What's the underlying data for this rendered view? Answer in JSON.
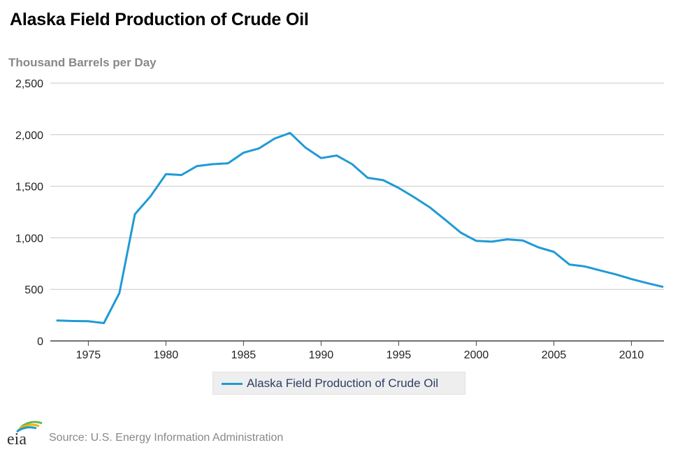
{
  "chart_data": {
    "type": "line",
    "title": "Alaska Field Production of Crude Oil",
    "ylabel": "Thousand Barrels per Day",
    "xlabel": "",
    "ylim": [
      0,
      2500
    ],
    "xlim": [
      1973,
      2012
    ],
    "yticks": [
      0,
      500,
      1000,
      1500,
      2000,
      2500
    ],
    "ytick_labels": [
      "0",
      "500",
      "1,000",
      "1,500",
      "2,000",
      "2,500"
    ],
    "xticks": [
      1975,
      1980,
      1985,
      1990,
      1995,
      2000,
      2005,
      2010
    ],
    "xtick_labels": [
      "1975",
      "1980",
      "1985",
      "1990",
      "1995",
      "2000",
      "2005",
      "2010"
    ],
    "grid": "horizontal",
    "legend_position": "bottom-center",
    "series": [
      {
        "name": "Alaska Field Production of Crude Oil",
        "color": "#1f9ad6",
        "x": [
          1973,
          1974,
          1975,
          1976,
          1977,
          1978,
          1979,
          1980,
          1981,
          1982,
          1983,
          1984,
          1985,
          1986,
          1987,
          1988,
          1989,
          1990,
          1991,
          1992,
          1993,
          1994,
          1995,
          1996,
          1997,
          1998,
          1999,
          2000,
          2001,
          2002,
          2003,
          2004,
          2005,
          2006,
          2007,
          2008,
          2009,
          2010,
          2011,
          2012
        ],
        "values": [
          198,
          193,
          191,
          173,
          464,
          1229,
          1401,
          1617,
          1609,
          1696,
          1714,
          1722,
          1825,
          1867,
          1962,
          2017,
          1874,
          1773,
          1798,
          1714,
          1582,
          1559,
          1484,
          1393,
          1296,
          1175,
          1050,
          970,
          963,
          985,
          974,
          908,
          864,
          741,
          722,
          683,
          645,
          600,
          561,
          526
        ]
      }
    ]
  },
  "legend": {
    "label": "Alaska Field Production of Crude Oil"
  },
  "footer": {
    "logo_text": "eia",
    "source": "Source: U.S. Energy Information Administration"
  },
  "colors": {
    "series": "#1f9ad6",
    "grid": "#c8c8c8",
    "axis": "#444444"
  }
}
